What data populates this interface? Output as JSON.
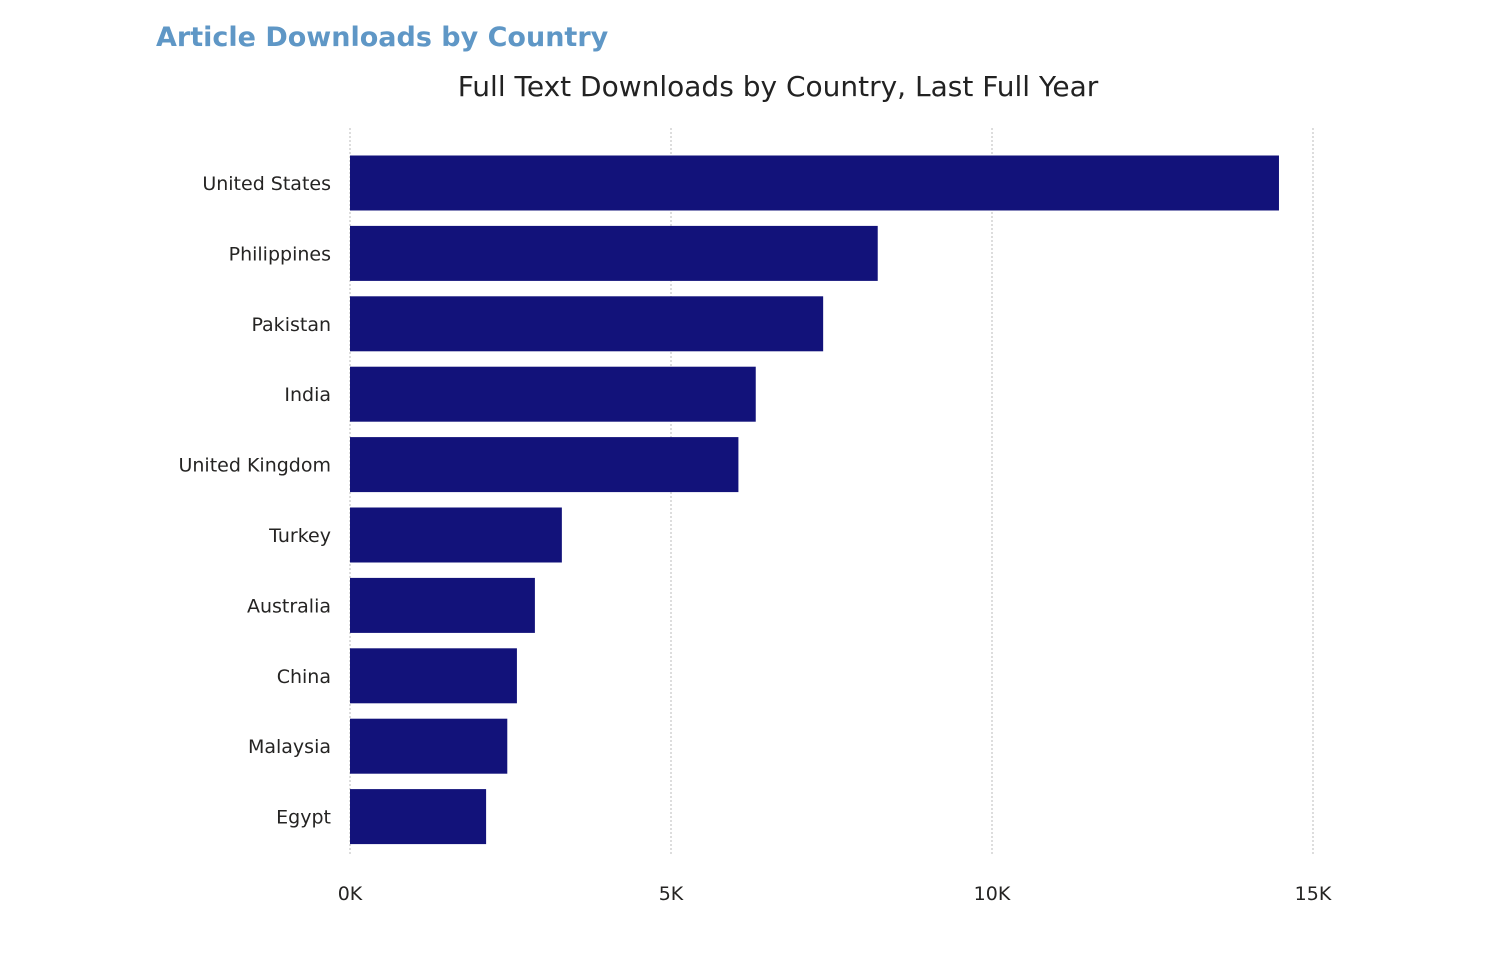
{
  "page": {
    "heading": "Article Downloads by Country"
  },
  "chart_data": {
    "type": "bar",
    "orientation": "horizontal",
    "title": "Full Text Downloads by Country, Last Full Year",
    "categories": [
      "United States",
      "Philippines",
      "Pakistan",
      "India",
      "United Kingdom",
      "Turkey",
      "Australia",
      "China",
      "Malaysia",
      "Egypt"
    ],
    "values": [
      14470,
      8220,
      7370,
      6320,
      6050,
      3300,
      2880,
      2600,
      2450,
      2120
    ],
    "xlim": [
      0,
      15000
    ],
    "xticks": [
      {
        "value": 0,
        "label": "0K"
      },
      {
        "value": 5000,
        "label": "5K"
      },
      {
        "value": 10000,
        "label": "10K"
      },
      {
        "value": 15000,
        "label": "15K"
      }
    ],
    "xlabel": "",
    "ylabel": "",
    "grid": true,
    "legend": "none",
    "colors": {
      "bar": "#12127a",
      "heading": "#5f97c6",
      "gridline": "#dddddd"
    }
  }
}
